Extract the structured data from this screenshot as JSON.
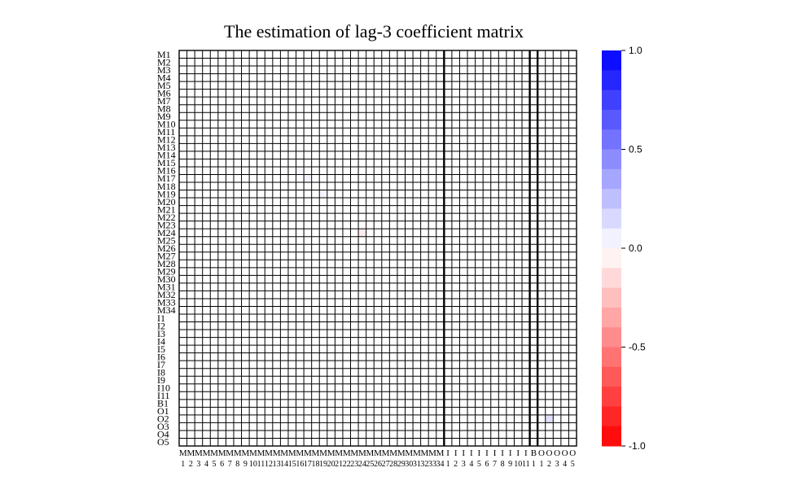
{
  "chart_data": {
    "type": "heatmap",
    "title": "The estimation of lag-3 coefficient matrix",
    "row_labels": [
      "M1",
      "M2",
      "M3",
      "M4",
      "M5",
      "M6",
      "M7",
      "M8",
      "M9",
      "M10",
      "M11",
      "M12",
      "M13",
      "M14",
      "M15",
      "M16",
      "M17",
      "M18",
      "M19",
      "M20",
      "M21",
      "M22",
      "M23",
      "M24",
      "M25",
      "M26",
      "M27",
      "M28",
      "M29",
      "M30",
      "M31",
      "M32",
      "M33",
      "M34",
      "I1",
      "I2",
      "I3",
      "I4",
      "I5",
      "I6",
      "I7",
      "I8",
      "I9",
      "I10",
      "I11",
      "B1",
      "O1",
      "O2",
      "O3",
      "O4",
      "O5"
    ],
    "col_labels": [
      [
        "M",
        "1"
      ],
      [
        "M",
        "2"
      ],
      [
        "M",
        "3"
      ],
      [
        "M",
        "4"
      ],
      [
        "M",
        "5"
      ],
      [
        "M",
        "6"
      ],
      [
        "M",
        "7"
      ],
      [
        "M",
        "8"
      ],
      [
        "M",
        "9"
      ],
      [
        "M",
        "10"
      ],
      [
        "M",
        "11"
      ],
      [
        "M",
        "12"
      ],
      [
        "M",
        "13"
      ],
      [
        "M",
        "14"
      ],
      [
        "M",
        "15"
      ],
      [
        "M",
        "16"
      ],
      [
        "M",
        "17"
      ],
      [
        "M",
        "18"
      ],
      [
        "M",
        "19"
      ],
      [
        "M",
        "20"
      ],
      [
        "M",
        "21"
      ],
      [
        "M",
        "22"
      ],
      [
        "M",
        "23"
      ],
      [
        "M",
        "24"
      ],
      [
        "M",
        "25"
      ],
      [
        "M",
        "26"
      ],
      [
        "M",
        "27"
      ],
      [
        "M",
        "28"
      ],
      [
        "M",
        "29"
      ],
      [
        "M",
        "30"
      ],
      [
        "M",
        "31"
      ],
      [
        "M",
        "32"
      ],
      [
        "M",
        "33"
      ],
      [
        "M",
        "34"
      ],
      [
        "I",
        "1"
      ],
      [
        "I",
        "2"
      ],
      [
        "I",
        "3"
      ],
      [
        "I",
        "4"
      ],
      [
        "I",
        "5"
      ],
      [
        "I",
        "6"
      ],
      [
        "I",
        "7"
      ],
      [
        "I",
        "8"
      ],
      [
        "I",
        "9"
      ],
      [
        "I",
        "10"
      ],
      [
        "I",
        "11"
      ],
      [
        "B",
        "1"
      ],
      [
        "O",
        "1"
      ],
      [
        "O",
        "2"
      ],
      [
        "O",
        "3"
      ],
      [
        "O",
        "4"
      ],
      [
        "O",
        "5"
      ]
    ],
    "default_value": 0,
    "nonzero_cells": [
      {
        "row": "M16",
        "col": "M16",
        "value": 0.03
      },
      {
        "row": "M17",
        "col": "M17",
        "value": 0.05
      },
      {
        "row": "M19",
        "col": "M19",
        "value": 0.04
      },
      {
        "row": "M24",
        "col": "M24",
        "value": -0.08
      },
      {
        "row": "O2",
        "col": "O2",
        "value": 0.12
      }
    ],
    "group_boundaries_after": [
      "M34",
      "I11",
      "B1"
    ],
    "colorbar": {
      "range": [
        -1.0,
        1.0
      ],
      "ticks": [
        1.0,
        0.5,
        0.0,
        -0.5,
        -1.0
      ],
      "tick_labels": [
        "1.0",
        "0.5",
        "0.0",
        "-0.5",
        "-1.0"
      ],
      "levels": 20,
      "low_color": "#FF0000",
      "mid_color": "#FFFFFF",
      "high_color": "#0000FF"
    }
  }
}
